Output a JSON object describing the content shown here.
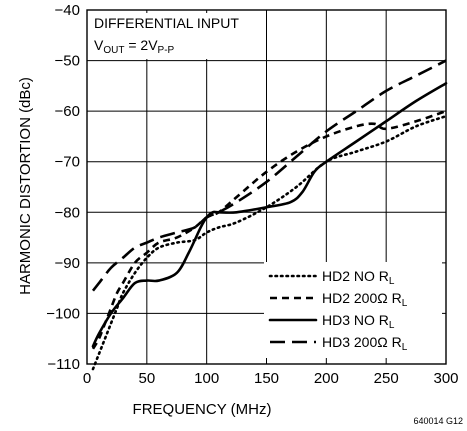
{
  "chart_data": {
    "type": "line",
    "title": "",
    "xlabel": "FREQUENCY (MHz)",
    "ylabel": "HARMONIC DISTORTION (dBc)",
    "xlim": [
      0,
      300
    ],
    "ylim": [
      -110,
      -40
    ],
    "x_ticks": [
      0,
      50,
      100,
      150,
      200,
      250,
      300
    ],
    "y_ticks": [
      -110,
      -100,
      -90,
      -80,
      -70,
      -60,
      -50,
      -40
    ],
    "grid": true,
    "legend_position": "bottom-right",
    "annotation_line1": "DIFFERENTIAL INPUT",
    "annotation_vout_main": "V",
    "annotation_vout_sub": "OUT",
    "annotation_vout_eq": " = 2V",
    "annotation_vout_sub2": "P-P",
    "figure_code": "640014 G12",
    "series": [
      {
        "label_main": "HD2 NO R",
        "label_sub": "L",
        "dash": "dotted",
        "x": [
          5,
          10,
          15,
          20,
          25,
          30,
          40,
          50,
          60,
          75,
          90,
          100,
          110,
          125,
          150,
          175,
          200,
          225,
          250,
          275,
          300
        ],
        "y": [
          -111,
          -108,
          -105,
          -102,
          -99,
          -96,
          -92,
          -89,
          -87,
          -86,
          -85.5,
          -84,
          -83,
          -82,
          -79,
          -75,
          -70,
          -68,
          -66,
          -63,
          -61
        ]
      },
      {
        "label_main": "HD2 200Ω R",
        "label_sub": "L",
        "dash": "short-dash",
        "x": [
          5,
          10,
          15,
          20,
          25,
          30,
          40,
          50,
          60,
          75,
          90,
          100,
          110,
          125,
          150,
          175,
          200,
          225,
          240,
          250,
          275,
          300
        ],
        "y": [
          -107,
          -105,
          -102,
          -99,
          -96,
          -94,
          -90,
          -88,
          -86,
          -85,
          -83,
          -81,
          -80,
          -77,
          -72,
          -68,
          -65,
          -63,
          -62.5,
          -63.5,
          -62,
          -60
        ]
      },
      {
        "label_main": "HD3 NO R",
        "label_sub": "L",
        "dash": "solid",
        "x": [
          5,
          10,
          20,
          30,
          40,
          50,
          60,
          75,
          85,
          95,
          100,
          105,
          110,
          125,
          150,
          170,
          180,
          190,
          200,
          225,
          250,
          275,
          300
        ],
        "y": [
          -106.5,
          -104,
          -100,
          -97,
          -94,
          -93.5,
          -93.5,
          -92,
          -88,
          -83,
          -81,
          -80,
          -80,
          -80,
          -79,
          -78,
          -76,
          -72,
          -70,
          -66,
          -62,
          -58,
          -54.5
        ]
      },
      {
        "label_main": "HD3 200Ω R",
        "label_sub": "L",
        "dash": "long-dash",
        "x": [
          5,
          10,
          20,
          30,
          40,
          50,
          60,
          75,
          90,
          100,
          110,
          125,
          150,
          175,
          200,
          225,
          250,
          275,
          300
        ],
        "y": [
          -95.5,
          -94,
          -91,
          -89,
          -87,
          -86,
          -85,
          -84,
          -83,
          -81,
          -80,
          -78,
          -74,
          -69,
          -64,
          -60,
          -56,
          -53,
          -50
        ]
      }
    ]
  }
}
